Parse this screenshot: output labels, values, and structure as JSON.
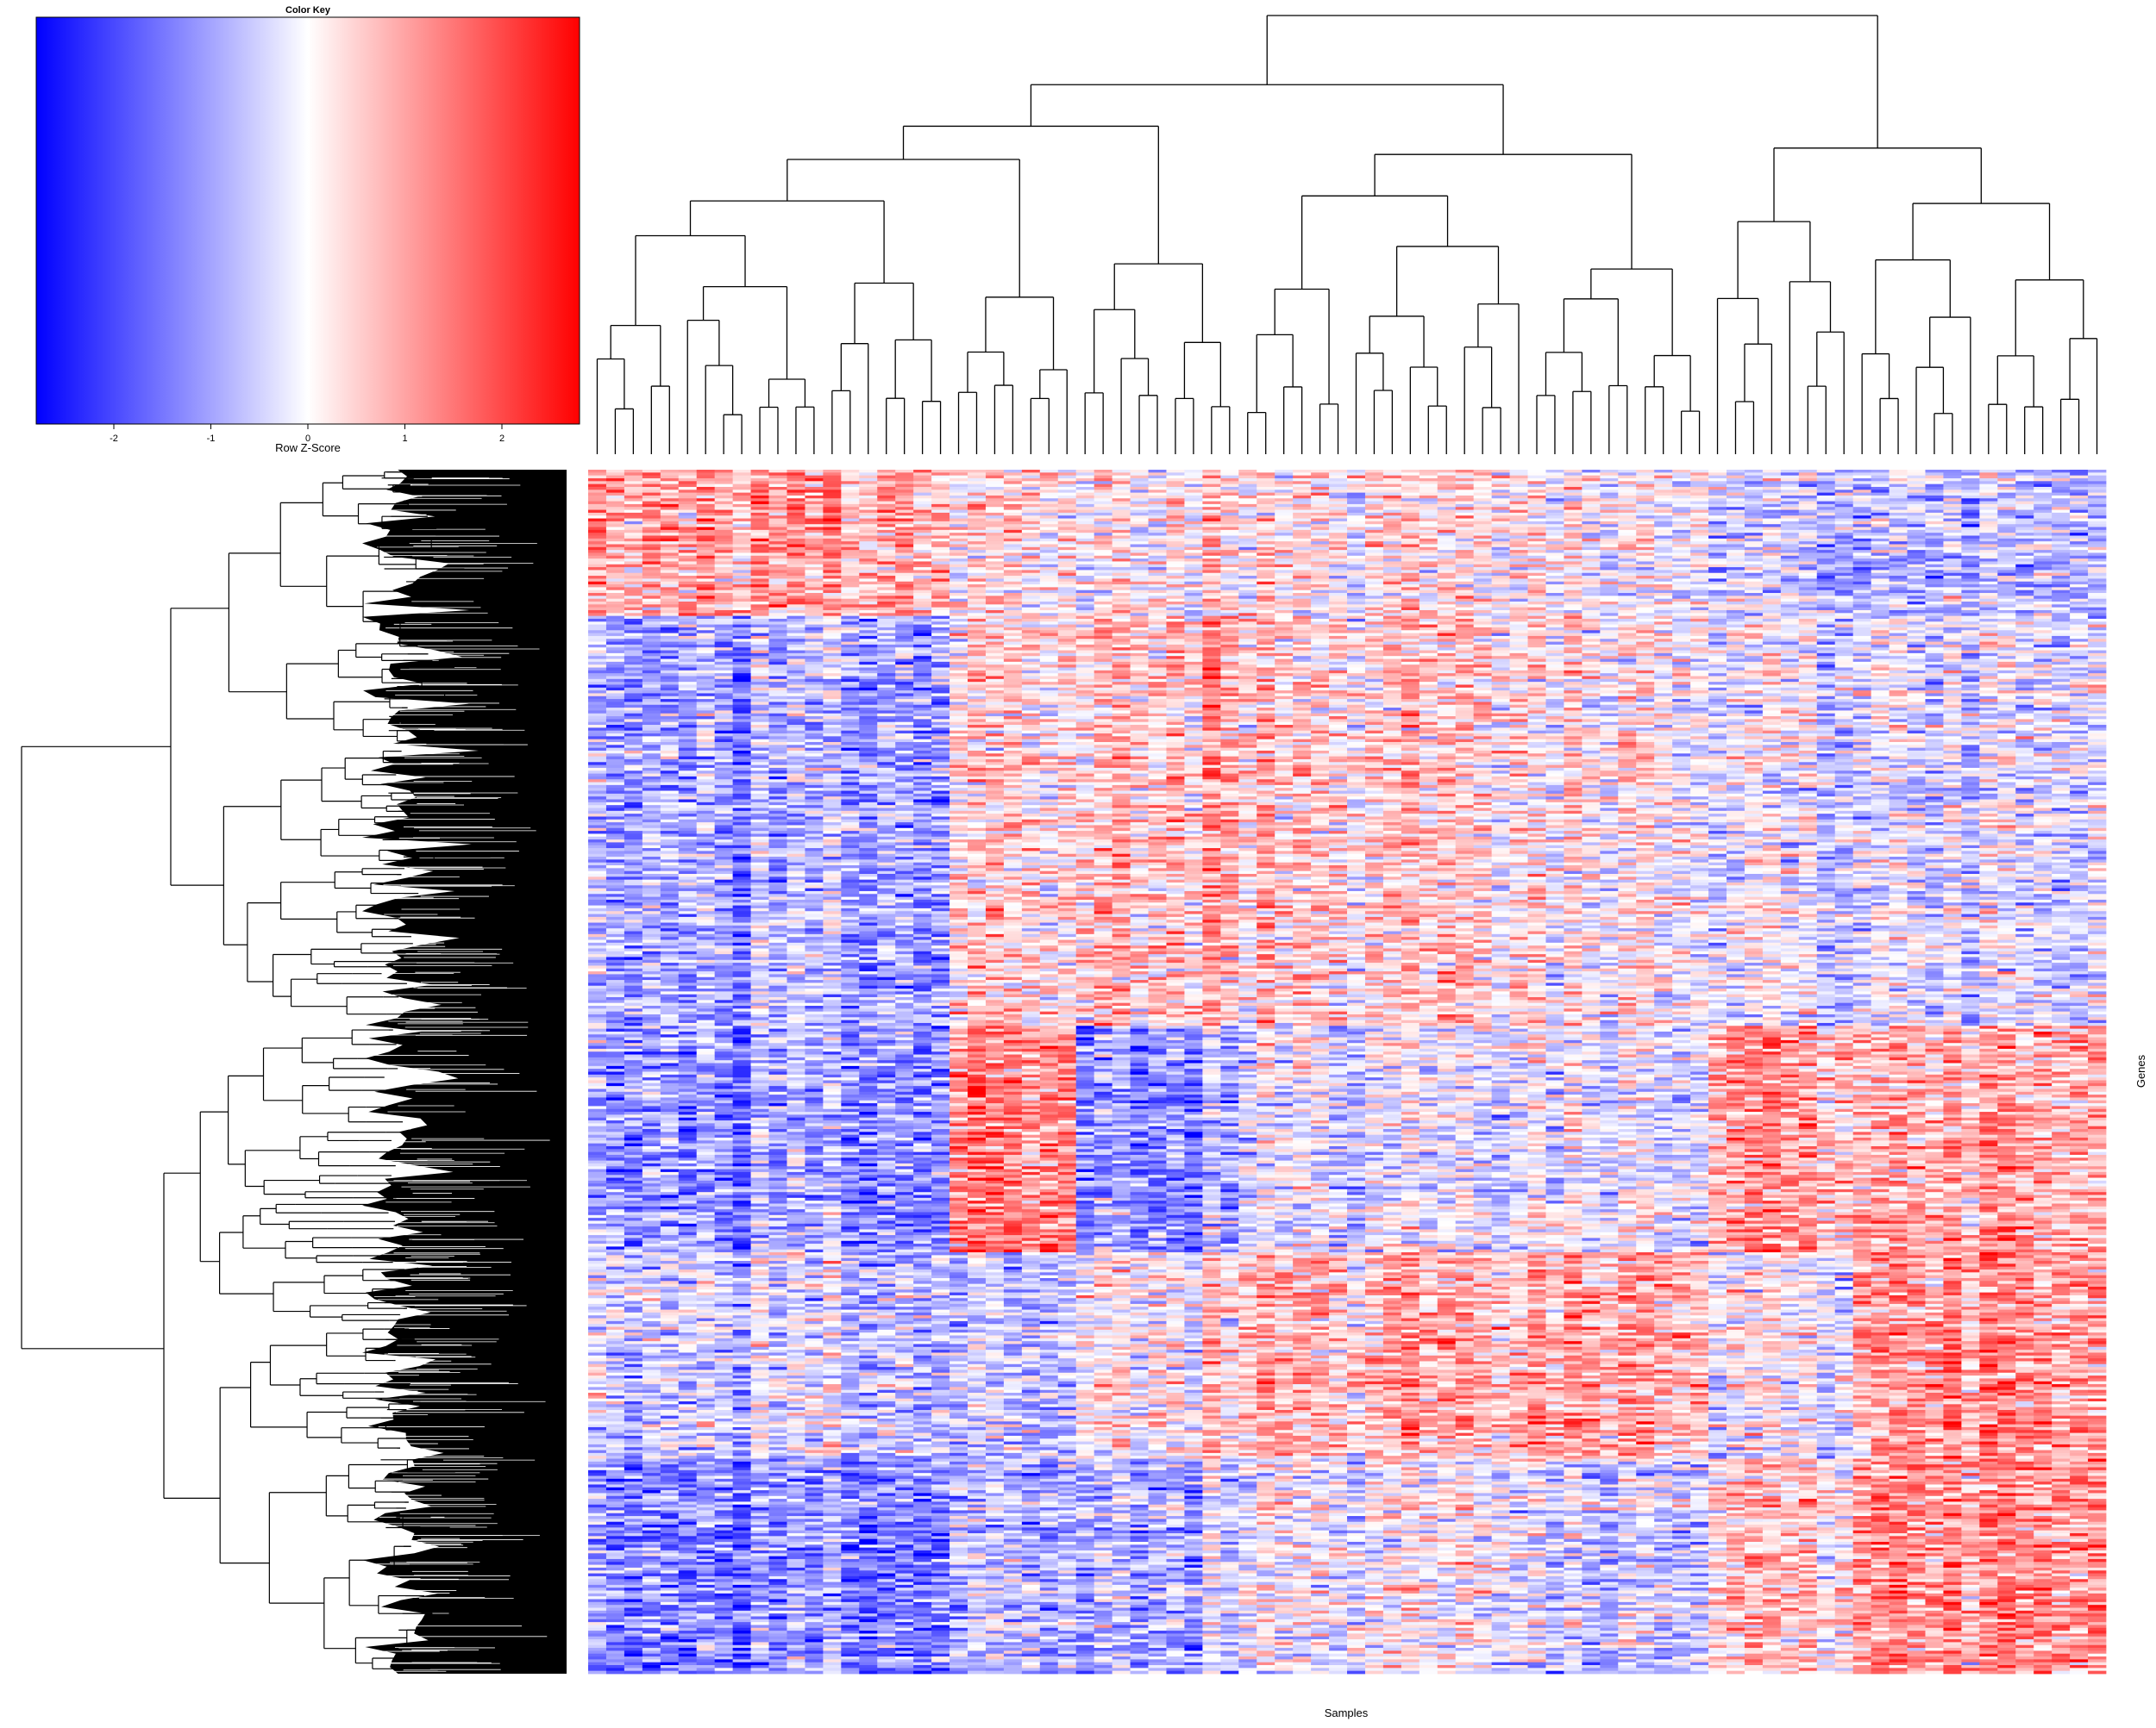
{
  "chart_data": {
    "type": "heatmap",
    "n_samples": 84,
    "colors": {
      "low": "#0000ff",
      "mid": "#ffffff",
      "high": "#ff0000",
      "dendrogram": "#000000"
    },
    "color_key": {
      "title": "Color Key",
      "xlabel": "Row Z-Score",
      "range": [
        -2.8,
        2.8
      ],
      "ticks": [
        -2,
        -1,
        0,
        1,
        2
      ],
      "tick_labels": [
        "-2",
        "-1",
        "0",
        "1",
        "2"
      ]
    },
    "xlabel": "Samples",
    "ylabel": "Genes",
    "column_groups": [
      {
        "id": "A",
        "cols": [
          0,
          20
        ],
        "gene_profile": [
          0.9,
          -0.9,
          -1.1,
          -0.5,
          -1.3
        ]
      },
      {
        "id": "A2",
        "cols": [
          20,
          27
        ],
        "gene_profile": [
          0.3,
          0.4,
          1.4,
          -0.6,
          -0.7
        ]
      },
      {
        "id": "B",
        "cols": [
          27,
          36
        ],
        "gene_profile": [
          0.1,
          0.6,
          -1.2,
          0.1,
          -0.8
        ]
      },
      {
        "id": "C",
        "cols": [
          36,
          52
        ],
        "gene_profile": [
          0.2,
          0.4,
          -0.3,
          0.7,
          -0.1
        ]
      },
      {
        "id": "D",
        "cols": [
          52,
          62
        ],
        "gene_profile": [
          0.0,
          0.1,
          -0.2,
          0.9,
          -0.5
        ]
      },
      {
        "id": "E",
        "cols": [
          62,
          70
        ],
        "gene_profile": [
          -0.5,
          -0.1,
          1.1,
          0.0,
          0.6
        ]
      },
      {
        "id": "F",
        "cols": [
          70,
          84
        ],
        "gene_profile": [
          -0.6,
          -0.2,
          1.0,
          1.2,
          1.3
        ]
      }
    ],
    "gene_blocks": [
      {
        "id": "G1",
        "rows": [
          0,
          0.12
        ]
      },
      {
        "id": "G2",
        "rows": [
          0.12,
          0.46
        ]
      },
      {
        "id": "G3",
        "rows": [
          0.46,
          0.65
        ]
      },
      {
        "id": "G4",
        "rows": [
          0.65,
          0.82
        ]
      },
      {
        "id": "G5",
        "rows": [
          0.82,
          1.0
        ]
      }
    ]
  }
}
